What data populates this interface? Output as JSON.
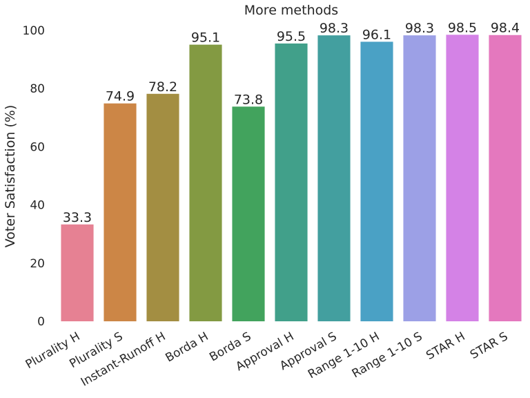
{
  "chart_data": {
    "type": "bar",
    "title": "More methods",
    "xlabel": "",
    "ylabel": "Voter Satisfaction (%)",
    "ylim": [
      0,
      100
    ],
    "yticks": [
      0,
      20,
      40,
      60,
      80,
      100
    ],
    "grid": false,
    "categories": [
      "Plurality H",
      "Plurality S",
      "Instant-Runoff H",
      "Borda H",
      "Borda S",
      "Approval H",
      "Approval S",
      "Range 1-10 H",
      "Range 1-10 S",
      "STAR H",
      "STAR S"
    ],
    "values": [
      33.3,
      74.9,
      78.2,
      95.1,
      73.8,
      95.5,
      98.3,
      96.1,
      98.3,
      98.5,
      98.4
    ],
    "value_labels": [
      "33.3",
      "74.9",
      "78.2",
      "95.1",
      "73.8",
      "95.5",
      "98.3",
      "96.1",
      "98.3",
      "98.5",
      "98.4"
    ],
    "colors": [
      "#e68193",
      "#cc8646",
      "#a38e42",
      "#839a42",
      "#42a35d",
      "#41a08a",
      "#439f9f",
      "#4aa1c5",
      "#9ca0e6",
      "#d482e6",
      "#e478be"
    ]
  }
}
